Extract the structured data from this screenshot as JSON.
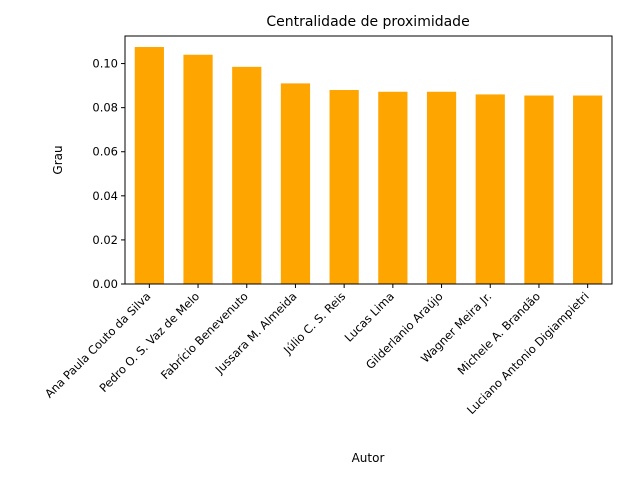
{
  "chart_data": {
    "type": "bar",
    "title": "Centralidade de proximidade",
    "xlabel": "Autor",
    "ylabel": "Grau",
    "categories": [
      "Ana Paula Couto da Silva",
      "Pedro O. S. Vaz de Melo",
      "Fabrício Benevenuto",
      "Jussara M. Almeida",
      "Júlio C. S. Reis",
      "Lucas Lima",
      "Gilderlanio Araújo",
      "Wagner Meira Jr.",
      "Michele A. Brandão",
      "Luciano Antonio Digiampietri"
    ],
    "values": [
      0.1075,
      0.104,
      0.0985,
      0.091,
      0.088,
      0.0872,
      0.0872,
      0.086,
      0.0855,
      0.0855
    ],
    "ylim": [
      0,
      0.1125
    ],
    "yticks": [
      "0.00",
      "0.02",
      "0.04",
      "0.06",
      "0.08",
      "0.10"
    ],
    "ytick_values": [
      0,
      0.02,
      0.04,
      0.06,
      0.08,
      0.1
    ],
    "bar_color": "#ffa500",
    "grid": false,
    "legend": "none"
  }
}
